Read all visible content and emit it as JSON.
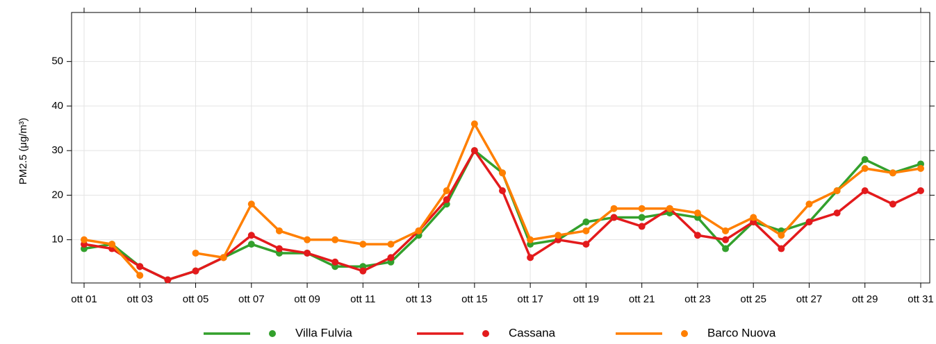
{
  "chart_data": {
    "type": "line",
    "y_label": "PM2.5 (μg/m³)",
    "categories": [
      "ott 01",
      null,
      "ott 03",
      null,
      "ott 05",
      null,
      "ott 07",
      null,
      "ott 09",
      null,
      "ott 11",
      null,
      "ott 13",
      null,
      "ott 15",
      null,
      "ott 17",
      null,
      "ott 19",
      null,
      "ott 21",
      null,
      "ott 23",
      null,
      "ott 25",
      null,
      "ott 27",
      null,
      "ott 29",
      null,
      "ott 31"
    ],
    "series": [
      {
        "name": "Villa Fulvia",
        "color": "#33a02c",
        "values": [
          8,
          9,
          4,
          1,
          3,
          6,
          9,
          7,
          7,
          4,
          4,
          5,
          11,
          18,
          30,
          25,
          9,
          10,
          14,
          15,
          15,
          16,
          15,
          8,
          14,
          12,
          14,
          21,
          28,
          25,
          27
        ]
      },
      {
        "name": "Cassana",
        "color": "#e31a1c",
        "values": [
          9,
          8,
          4,
          1,
          3,
          6,
          11,
          8,
          7,
          5,
          3,
          6,
          12,
          19,
          30,
          21,
          6,
          10,
          9,
          15,
          13,
          17,
          11,
          10,
          14,
          8,
          14,
          16,
          21,
          18,
          21
        ]
      },
      {
        "name": "Barco Nuova",
        "color": "#ff7f00",
        "values": [
          10,
          9,
          2,
          null,
          7,
          6,
          18,
          12,
          10,
          10,
          9,
          9,
          12,
          21,
          36,
          25,
          10,
          11,
          12,
          17,
          17,
          17,
          16,
          12,
          15,
          11,
          18,
          21,
          26,
          25,
          26
        ]
      }
    ],
    "ylim": [
      0.3,
      61
    ],
    "yticks": [
      10,
      20,
      30,
      40,
      50
    ],
    "grid": true,
    "legend": "bottom"
  }
}
